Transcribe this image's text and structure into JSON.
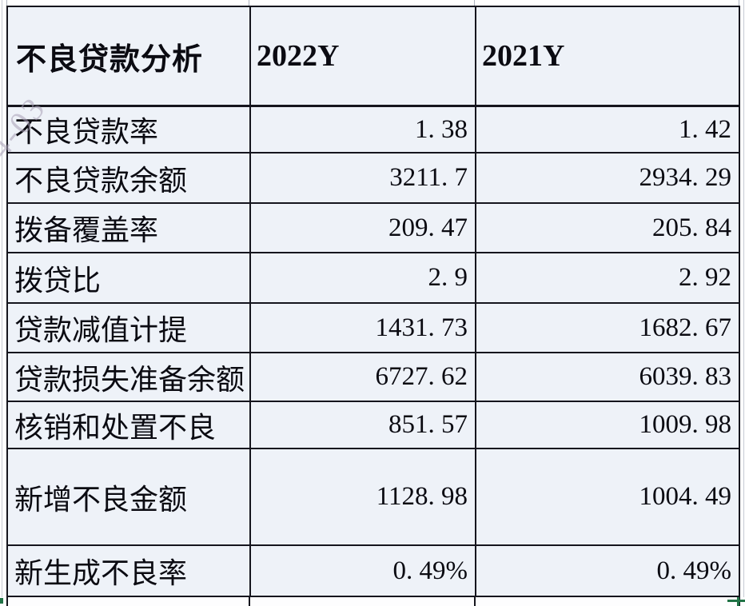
{
  "table": {
    "title": "不良贷款分析",
    "columns": [
      "2022Y",
      "2021Y"
    ],
    "rows": [
      {
        "label": "不良贷款率",
        "y2022": "1. 38",
        "y2021": "1. 42"
      },
      {
        "label": "不良贷款余额",
        "y2022": "3211. 7",
        "y2021": "2934. 29"
      },
      {
        "label": "拨备覆盖率",
        "y2022": "209. 47",
        "y2021": "205. 84"
      },
      {
        "label": "拨贷比",
        "y2022": "2. 9",
        "y2021": "2. 92"
      },
      {
        "label": "贷款减值计提",
        "y2022": "1431. 73",
        "y2021": "1682. 67"
      },
      {
        "label": "贷款损失准备余额",
        "y2022": "6727. 62",
        "y2021": "6039. 83"
      },
      {
        "label": "核销和处置不良",
        "y2022": "851. 57",
        "y2021": "1009. 98"
      },
      {
        "label": "新增不良金额",
        "y2022": "1128. 98",
        "y2021": "1004. 49"
      },
      {
        "label": "新生成不良率",
        "y2022": "0. 49%",
        "y2021": "0. 49%"
      }
    ]
  },
  "watermark": {
    "text": "4-03"
  },
  "colors": {
    "cell_bg": "#eef2f8",
    "grid_border": "#15151d",
    "selection_green": "#217346",
    "text": "#0b0b12",
    "watermark": "#a89eb4"
  }
}
